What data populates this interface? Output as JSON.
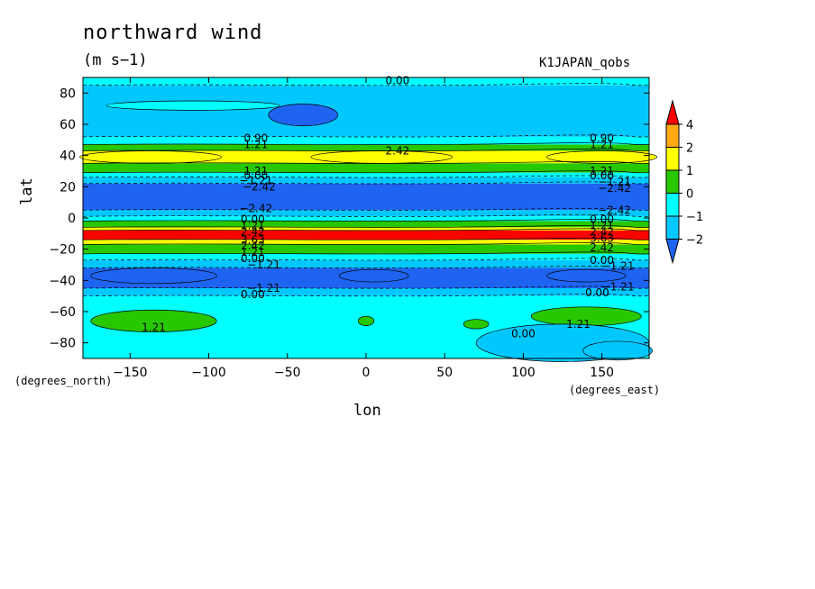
{
  "chart_data": {
    "type": "contour",
    "title": "northward wind",
    "units": "(m s−1)",
    "run_label": "K1JAPAN_qobs",
    "xlabel": "lon",
    "ylabel": "lat",
    "x_units_note": "(degrees_east)",
    "y_units_note": "(degrees_north)",
    "xlim": [
      -180,
      180
    ],
    "ylim": [
      -90,
      90
    ],
    "x_ticks": [
      -150,
      -100,
      -50,
      0,
      50,
      100,
      150
    ],
    "y_ticks": [
      80,
      60,
      40,
      20,
      0,
      -20,
      -40,
      -60,
      -80
    ],
    "x_tick_labels": [
      "−150",
      "−100",
      "−50",
      "0",
      "50",
      "100",
      "150"
    ],
    "y_tick_labels": [
      "80",
      "60",
      "40",
      "20",
      "0",
      "−20",
      "−40",
      "−60",
      "−80"
    ],
    "colorbar": {
      "levels": [
        -2,
        -1,
        0,
        1,
        2,
        4
      ],
      "labels": [
        "4",
        "2",
        "1",
        "0",
        "−1",
        "−2"
      ],
      "colors": [
        "#1e64f0",
        "#00c8ff",
        "#00ffff",
        "#28c800",
        "#ffff00",
        "#ffaa14",
        "#ff0000"
      ]
    },
    "zonal_bands": [
      {
        "lat_top": 90,
        "lat_bottom": 85,
        "level": 0
      },
      {
        "lat_top": 85,
        "lat_bottom": 52,
        "level": -1
      },
      {
        "lat_top": 52,
        "lat_bottom": 47,
        "level": 0
      },
      {
        "lat_top": 47,
        "lat_bottom": 43,
        "level": 1
      },
      {
        "lat_top": 43,
        "lat_bottom": 35,
        "level": 2
      },
      {
        "lat_top": 35,
        "lat_bottom": 29,
        "level": 1
      },
      {
        "lat_top": 29,
        "lat_bottom": 26,
        "level": 0
      },
      {
        "lat_top": 26,
        "lat_bottom": 22,
        "level": -1
      },
      {
        "lat_top": 22,
        "lat_bottom": 5,
        "level": -2
      },
      {
        "lat_top": 5,
        "lat_bottom": 1,
        "level": -1
      },
      {
        "lat_top": 1,
        "lat_bottom": -2,
        "level": 0
      },
      {
        "lat_top": -2,
        "lat_bottom": -6,
        "level": 1
      },
      {
        "lat_top": -6,
        "lat_bottom": -8,
        "level": 2
      },
      {
        "lat_top": -8,
        "lat_bottom": -14,
        "level": 4
      },
      {
        "lat_top": -14,
        "lat_bottom": -17,
        "level": 2
      },
      {
        "lat_top": -17,
        "lat_bottom": -23,
        "level": 1
      },
      {
        "lat_top": -23,
        "lat_bottom": -27,
        "level": 0
      },
      {
        "lat_top": -27,
        "lat_bottom": -32,
        "level": -1
      },
      {
        "lat_top": -32,
        "lat_bottom": -45,
        "level": -2
      },
      {
        "lat_top": -45,
        "lat_bottom": -50,
        "level": -1
      },
      {
        "lat_top": -50,
        "lat_bottom": -90,
        "level": 0
      }
    ],
    "patches": [
      {
        "lon": -110,
        "lat": 72,
        "rx": 55,
        "ry": 3,
        "level": 0
      },
      {
        "lon": -40,
        "lat": 66,
        "rx": 22,
        "ry": 7,
        "level": -2
      },
      {
        "lon": -137,
        "lat": 39,
        "rx": 45,
        "ry": 4,
        "level": 2
      },
      {
        "lon": 10,
        "lat": 39,
        "rx": 45,
        "ry": 4,
        "level": 2
      },
      {
        "lon": 150,
        "lat": 39,
        "rx": 35,
        "ry": 4,
        "level": 2
      },
      {
        "lon": -135,
        "lat": -37,
        "rx": 40,
        "ry": 5,
        "level": -2
      },
      {
        "lon": 5,
        "lat": -37,
        "rx": 22,
        "ry": 4,
        "level": -2
      },
      {
        "lon": 140,
        "lat": -37,
        "rx": 25,
        "ry": 4,
        "level": -2
      },
      {
        "lon": -135,
        "lat": -66,
        "rx": 40,
        "ry": 7,
        "level": 1
      },
      {
        "lon": 140,
        "lat": -63,
        "rx": 35,
        "ry": 6,
        "level": 1
      },
      {
        "lon": 0,
        "lat": -66,
        "rx": 5,
        "ry": 3,
        "level": 1
      },
      {
        "lon": 70,
        "lat": -68,
        "rx": 8,
        "ry": 3,
        "level": 1
      },
      {
        "lon": 125,
        "lat": -80,
        "rx": 55,
        "ry": 12,
        "level": -1
      },
      {
        "lon": 160,
        "lat": -85,
        "rx": 22,
        "ry": 6,
        "level": -1
      }
    ],
    "contour_labels": [
      {
        "text": "0.00",
        "lon": 20,
        "lat": 88
      },
      {
        "text": "0.90",
        "lon": -70,
        "lat": 51
      },
      {
        "text": "1.21",
        "lon": -70,
        "lat": 47
      },
      {
        "text": "0.90",
        "lon": 150,
        "lat": 51
      },
      {
        "text": "1.21",
        "lon": 150,
        "lat": 47
      },
      {
        "text": "2.42",
        "lon": 20,
        "lat": 43
      },
      {
        "text": "1.21",
        "lon": -70,
        "lat": 30
      },
      {
        "text": "0.00",
        "lon": -70,
        "lat": 27
      },
      {
        "text": "−1.21",
        "lon": -70,
        "lat": 24
      },
      {
        "text": "−2.42",
        "lon": -68,
        "lat": 20
      },
      {
        "text": "1.21",
        "lon": 150,
        "lat": 30
      },
      {
        "text": "0.00",
        "lon": 150,
        "lat": 27
      },
      {
        "text": "−1.21",
        "lon": 158,
        "lat": 23
      },
      {
        "text": "−2.42",
        "lon": 158,
        "lat": 19
      },
      {
        "text": "−2.42",
        "lon": -70,
        "lat": 6
      },
      {
        "text": "−2.42",
        "lon": 158,
        "lat": 5
      },
      {
        "text": "0.00",
        "lon": -72,
        "lat": -1
      },
      {
        "text": "1.21",
        "lon": -72,
        "lat": -5
      },
      {
        "text": "2.42",
        "lon": -72,
        "lat": -9
      },
      {
        "text": "3.63",
        "lon": -72,
        "lat": -14
      },
      {
        "text": "2.42",
        "lon": -72,
        "lat": -18
      },
      {
        "text": "1.21",
        "lon": -72,
        "lat": -22
      },
      {
        "text": "0.00",
        "lon": -72,
        "lat": -26
      },
      {
        "text": "−1.21",
        "lon": -65,
        "lat": -30
      },
      {
        "text": "0.00",
        "lon": 150,
        "lat": -1
      },
      {
        "text": "1.21",
        "lon": 150,
        "lat": -5
      },
      {
        "text": "2.42",
        "lon": 150,
        "lat": -9
      },
      {
        "text": "3.63",
        "lon": 150,
        "lat": -13
      },
      {
        "text": "2.42",
        "lon": 150,
        "lat": -19
      },
      {
        "text": "0.00",
        "lon": 150,
        "lat": -27
      },
      {
        "text": "−1.21",
        "lon": 160,
        "lat": -31
      },
      {
        "text": "−1.21",
        "lon": -65,
        "lat": -45
      },
      {
        "text": "0.00",
        "lon": -72,
        "lat": -49
      },
      {
        "text": "−1.21",
        "lon": 160,
        "lat": -44
      },
      {
        "text": "0.00",
        "lon": 147,
        "lat": -48
      },
      {
        "text": "1.21",
        "lon": -135,
        "lat": -70
      },
      {
        "text": "1.21",
        "lon": 135,
        "lat": -68
      },
      {
        "text": "0.00",
        "lon": 100,
        "lat": -74
      }
    ]
  }
}
